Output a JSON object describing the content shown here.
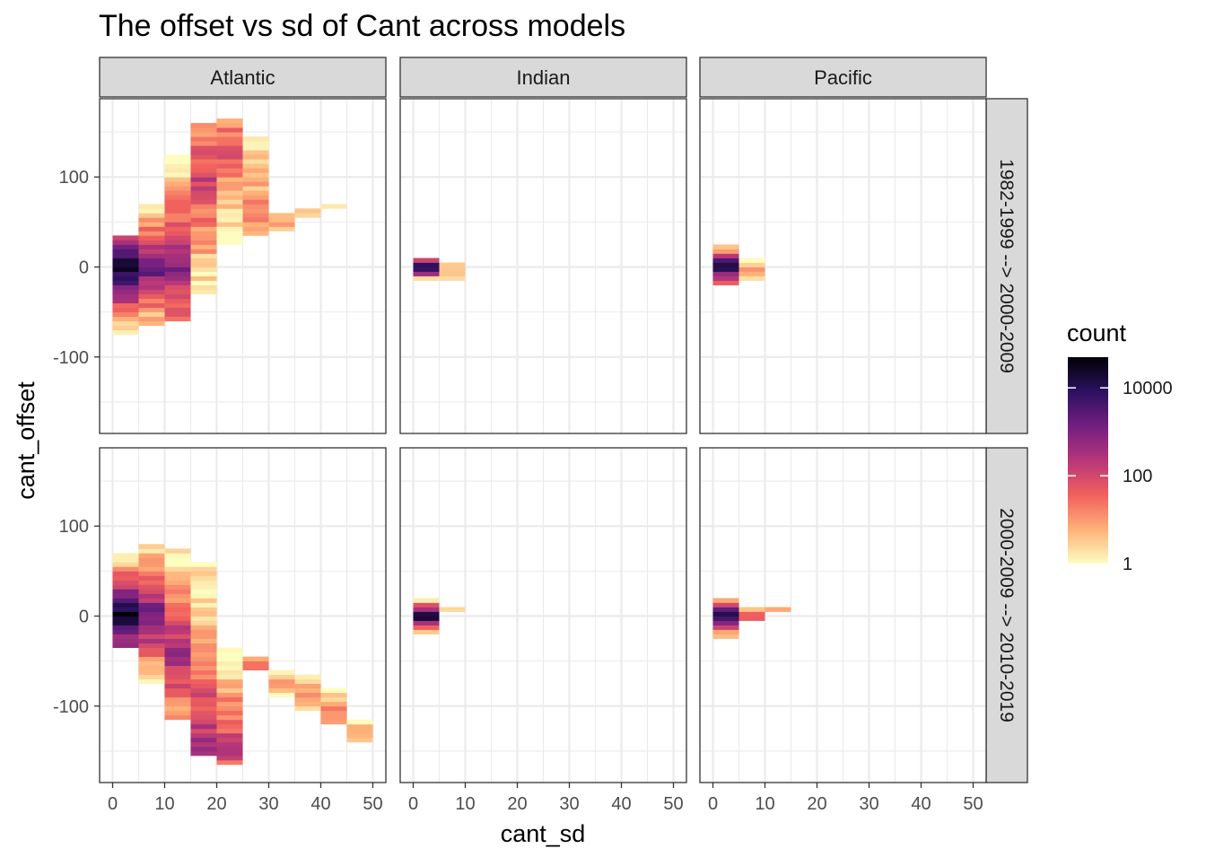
{
  "chart_data": {
    "type": "heatmap",
    "title": "The offset vs sd of Cant across models",
    "xlabel": "cant_sd",
    "ylabel": "cant_offset",
    "xlim": [
      -2.5,
      52.5
    ],
    "ylim": [
      -185,
      187
    ],
    "x_ticks": [
      0,
      10,
      20,
      30,
      40,
      50
    ],
    "y_ticks": [
      -100,
      0,
      100
    ],
    "x_bin_width": 5,
    "y_bin_height": 5,
    "grid": true,
    "columns": [
      "Atlantic",
      "Indian",
      "Pacific"
    ],
    "rows": [
      "1982-1999 --> 2000-2009",
      "2000-2009 --> 2010-2019"
    ],
    "legend": {
      "title": "count",
      "scale": "log10",
      "tick_labels": [
        "1",
        "100",
        "10000"
      ],
      "tick_values": [
        1,
        100,
        10000
      ],
      "max": 50000,
      "position": "right",
      "colors": [
        "#fcfdbf",
        "#feb078",
        "#f1605d",
        "#b63679",
        "#721f81",
        "#2c115f",
        "#000004"
      ]
    },
    "panels": [
      {
        "basin": "Atlantic",
        "period": "1982-1999 --> 2000-2009",
        "columns": [
          {
            "x": 2.5,
            "y": [
              -75,
              35
            ],
            "peak": 0,
            "peak_count": 50000
          },
          {
            "x": 7.5,
            "y": [
              -65,
              70
            ],
            "peak": 0,
            "peak_count": 3000
          },
          {
            "x": 12.5,
            "y": [
              -60,
              125
            ],
            "peak": 0,
            "peak_count": 800
          },
          {
            "x": 17.5,
            "y": [
              -30,
              160
            ],
            "peak": 100,
            "peak_count": 150
          },
          {
            "x": 22.5,
            "y": [
              25,
              165
            ],
            "peak": 130,
            "peak_count": 60
          },
          {
            "x": 27.5,
            "y": [
              35,
              145
            ],
            "peak": 55,
            "peak_count": 20
          },
          {
            "x": 32.5,
            "y": [
              40,
              60
            ],
            "peak": 50,
            "peak_count": 8
          },
          {
            "x": 37.5,
            "y": [
              55,
              65
            ],
            "peak": 60,
            "peak_count": 4
          },
          {
            "x": 42.5,
            "y": [
              65,
              70
            ],
            "peak": 67,
            "peak_count": 2
          }
        ]
      },
      {
        "basin": "Indian",
        "period": "1982-1999 --> 2000-2009",
        "columns": [
          {
            "x": 2.5,
            "y": [
              -15,
              10
            ],
            "peak": 0,
            "peak_count": 50000
          },
          {
            "x": 7.5,
            "y": [
              -15,
              5
            ],
            "peak": 0,
            "peak_count": 5
          }
        ]
      },
      {
        "basin": "Pacific",
        "period": "1982-1999 --> 2000-2009",
        "columns": [
          {
            "x": 2.5,
            "y": [
              -20,
              25
            ],
            "peak": 0,
            "peak_count": 50000
          },
          {
            "x": 7.5,
            "y": [
              -15,
              10
            ],
            "peak": -5,
            "peak_count": 20
          }
        ]
      },
      {
        "basin": "Atlantic",
        "period": "2000-2009 --> 2010-2019",
        "columns": [
          {
            "x": 2.5,
            "y": [
              -35,
              70
            ],
            "peak": 0,
            "peak_count": 50000
          },
          {
            "x": 7.5,
            "y": [
              -75,
              80
            ],
            "peak": 0,
            "peak_count": 3000
          },
          {
            "x": 12.5,
            "y": [
              -115,
              75
            ],
            "peak": -40,
            "peak_count": 500
          },
          {
            "x": 17.5,
            "y": [
              -155,
              60
            ],
            "peak": -140,
            "peak_count": 300
          },
          {
            "x": 22.5,
            "y": [
              -165,
              -35
            ],
            "peak": -145,
            "peak_count": 150
          },
          {
            "x": 27.5,
            "y": [
              -60,
              -45
            ],
            "peak": -55,
            "peak_count": 80
          },
          {
            "x": 32.5,
            "y": [
              -90,
              -60
            ],
            "peak": -75,
            "peak_count": 50
          },
          {
            "x": 37.5,
            "y": [
              -105,
              -65
            ],
            "peak": -90,
            "peak_count": 25
          },
          {
            "x": 42.5,
            "y": [
              -120,
              -80
            ],
            "peak": -105,
            "peak_count": 20
          },
          {
            "x": 47.5,
            "y": [
              -140,
              -115
            ],
            "peak": -130,
            "peak_count": 10
          }
        ]
      },
      {
        "basin": "Indian",
        "period": "2000-2009 --> 2010-2019",
        "columns": [
          {
            "x": 2.5,
            "y": [
              -20,
              20
            ],
            "peak": 0,
            "peak_count": 50000
          },
          {
            "x": 7.5,
            "y": [
              5,
              10
            ],
            "peak": 7,
            "peak_count": 3
          }
        ]
      },
      {
        "basin": "Pacific",
        "period": "2000-2009 --> 2010-2019",
        "columns": [
          {
            "x": 2.5,
            "y": [
              -25,
              20
            ],
            "peak": 0,
            "peak_count": 50000
          },
          {
            "x": 7.5,
            "y": [
              -5,
              10
            ],
            "peak": 0,
            "peak_count": 200
          },
          {
            "x": 12.5,
            "y": [
              5,
              10
            ],
            "peak": 7,
            "peak_count": 30
          }
        ]
      }
    ]
  }
}
